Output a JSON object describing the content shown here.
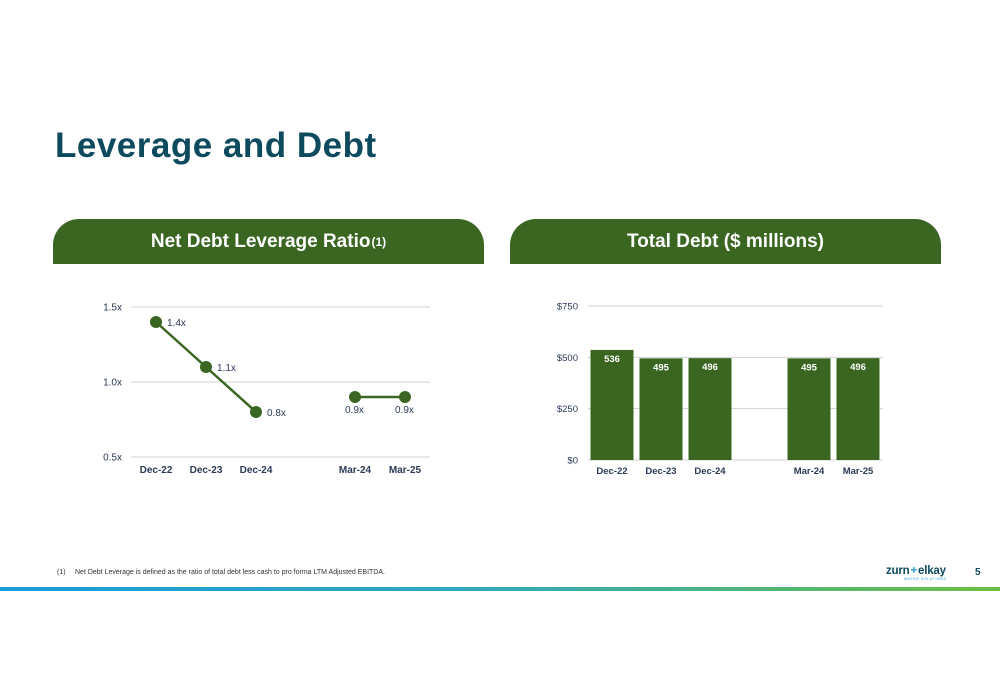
{
  "page": {
    "title": "Leverage and Debt",
    "footnote_marker": "(1)",
    "footnote_text": "Net Debt Leverage is defined as the ratio of total debt less cash to pro forma LTM Adjusted EBITDA.",
    "page_number": "5",
    "logo_text_left": "zurn",
    "logo_plus": "+",
    "logo_text_right": "elkay",
    "logo_subtext": "WATER SOLUTIONS"
  },
  "colors": {
    "title": "#0e4a5e",
    "header_bg": "#3a6622",
    "series": "#3a6622",
    "grid": "#d0d0d0",
    "axis_text": "#2b3a55"
  },
  "chart_data": [
    {
      "type": "line",
      "title": "Net Debt Leverage Ratio",
      "title_superscript": "(1)",
      "categories": [
        "Dec-22",
        "Dec-23",
        "Dec-24",
        "Mar-24",
        "Mar-25"
      ],
      "series": [
        {
          "values": [
            1.4,
            1.1,
            0.8,
            0.9,
            0.9
          ],
          "labels": [
            "1.4x",
            "1.1x",
            "0.8x",
            "0.9x",
            "0.9x"
          ]
        }
      ],
      "line_segments": [
        [
          0,
          1,
          2
        ],
        [
          3,
          4
        ]
      ],
      "gap_after_index": 2,
      "yticks": [
        0.5,
        1.0,
        1.5
      ],
      "ytick_labels": [
        "0.5x",
        "1.0x",
        "1.5x"
      ],
      "ylim": [
        0.5,
        1.5
      ],
      "grid": true
    },
    {
      "type": "bar",
      "title": "Total Debt ($ millions)",
      "categories": [
        "Dec-22",
        "Dec-23",
        "Dec-24",
        "Mar-24",
        "Mar-25"
      ],
      "values": [
        536,
        495,
        496,
        495,
        496
      ],
      "labels": [
        "536",
        "495",
        "496",
        "495",
        "496"
      ],
      "gap_after_index": 2,
      "yticks": [
        0,
        250,
        500,
        750
      ],
      "ytick_labels": [
        "$0",
        "$250",
        "$500",
        "$750"
      ],
      "ylim": [
        0,
        750
      ],
      "grid": true
    }
  ]
}
